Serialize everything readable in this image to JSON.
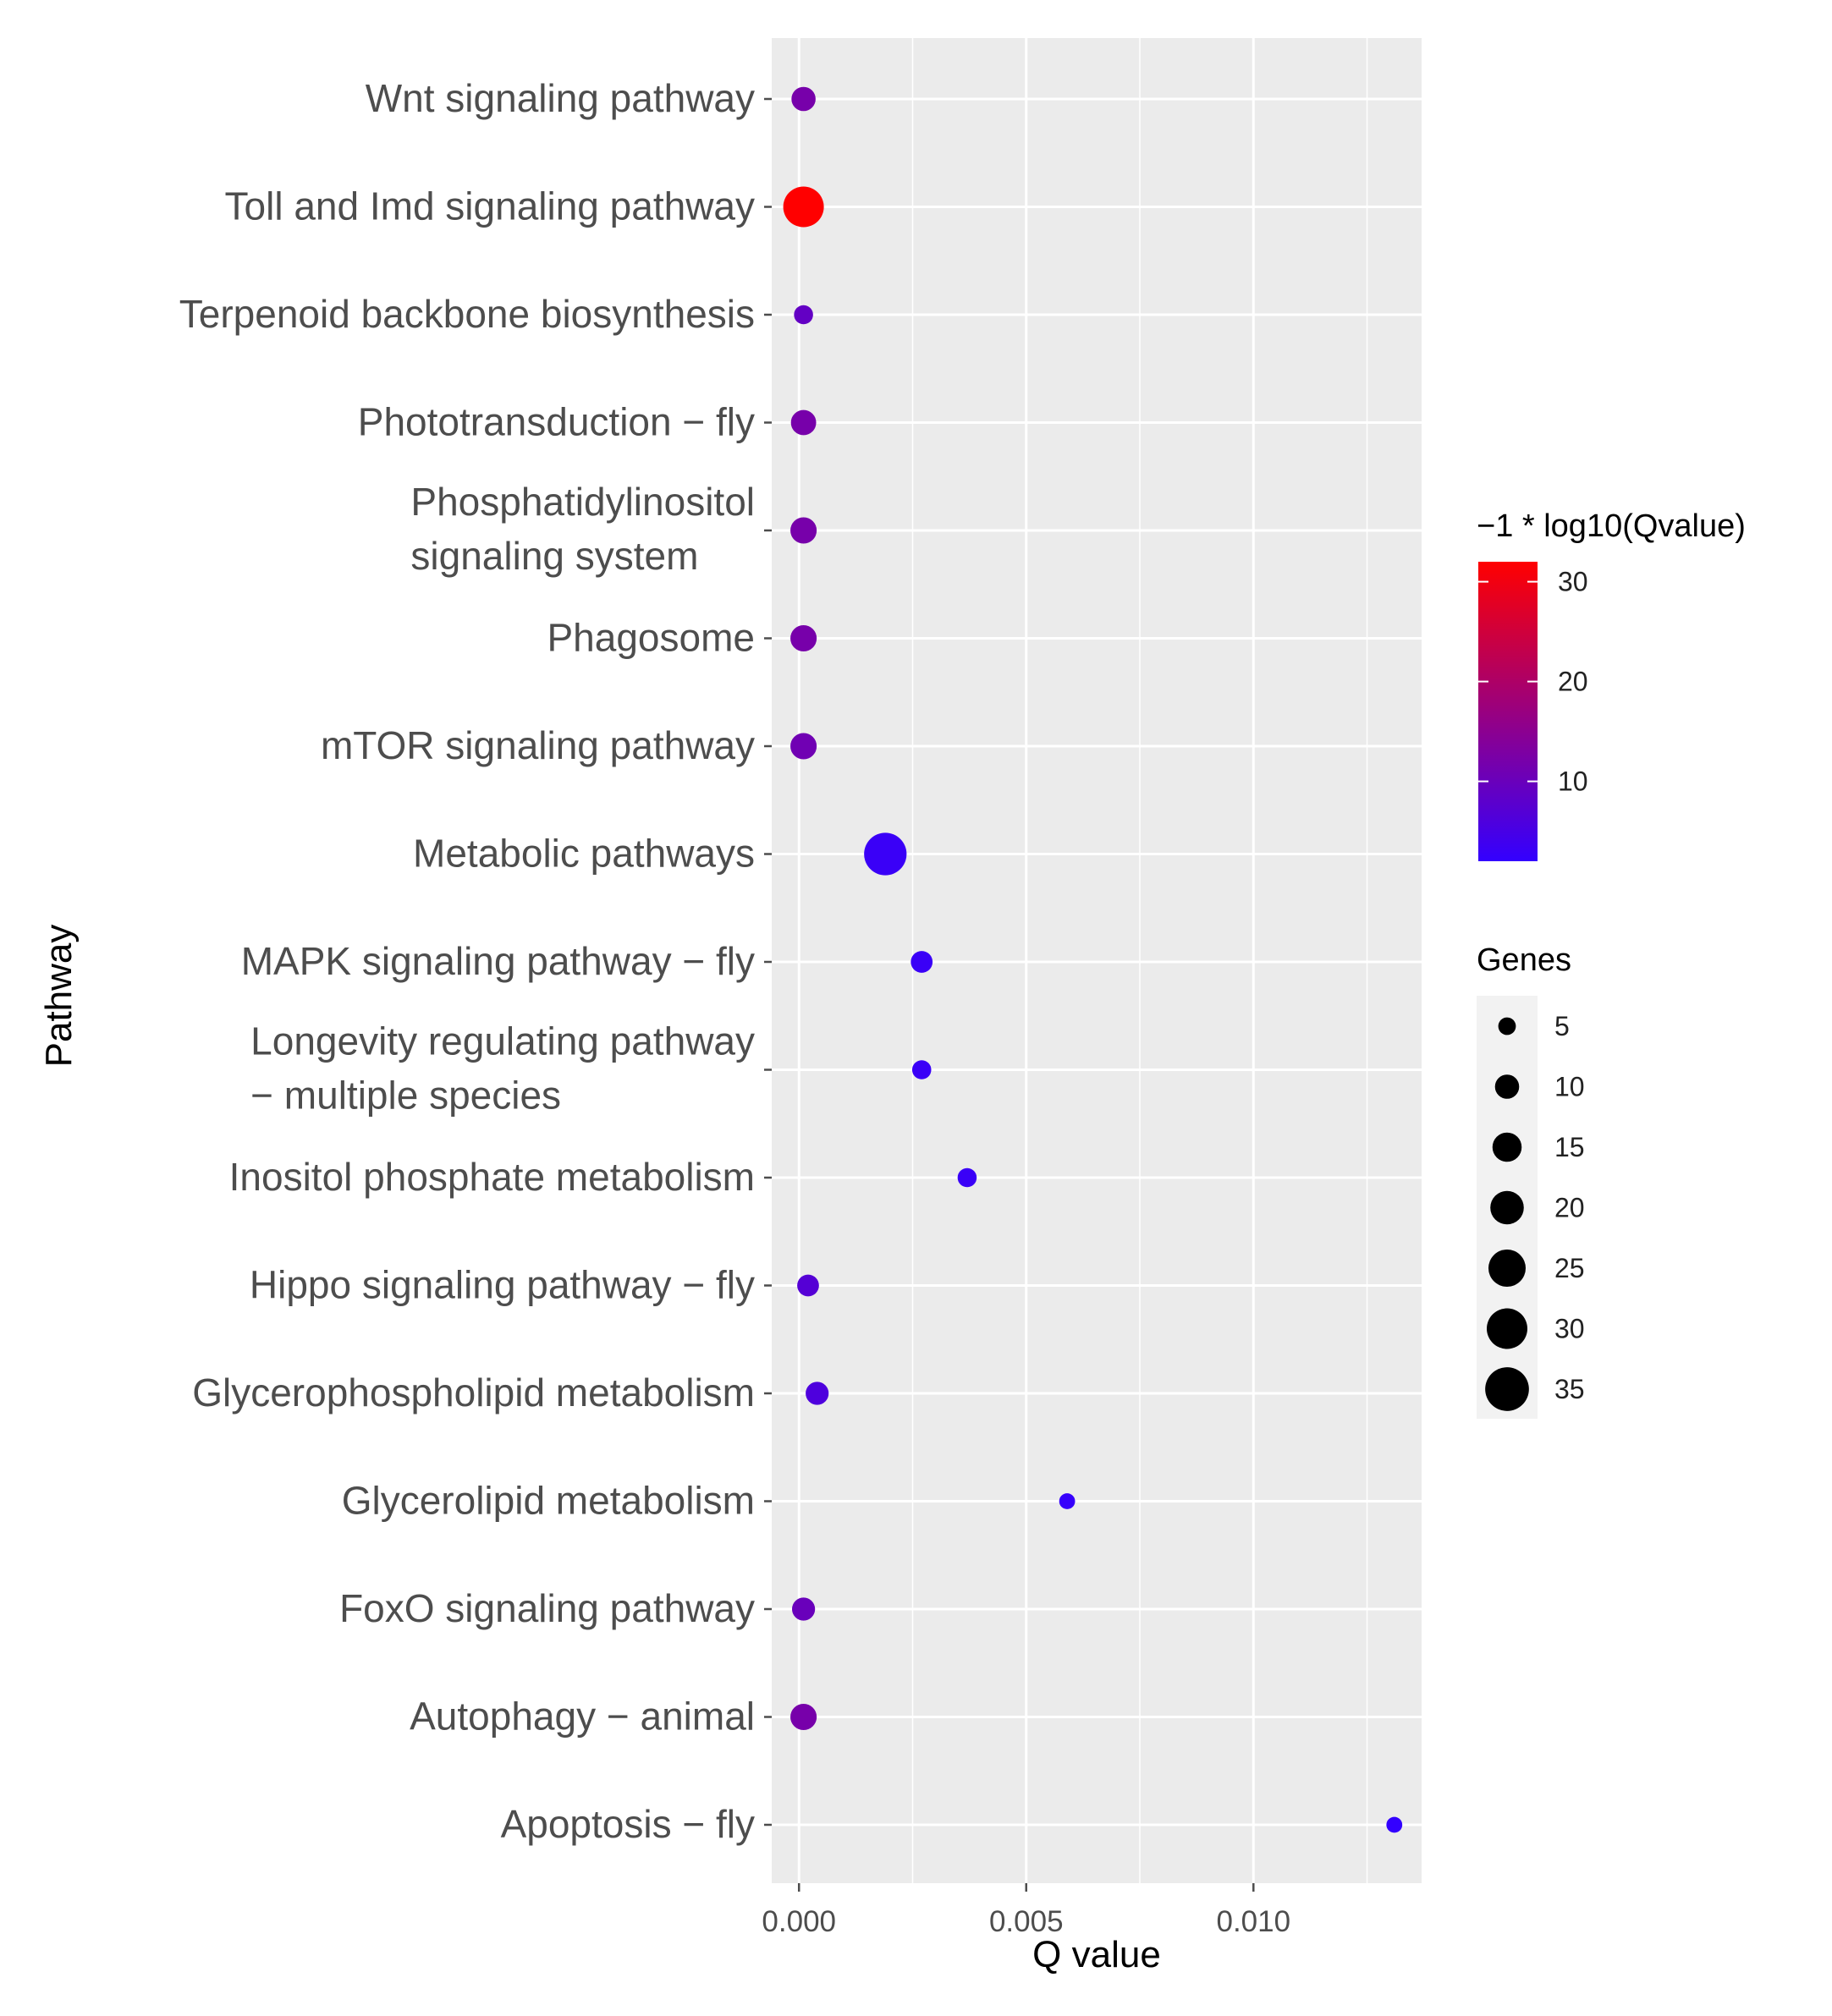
{
  "chart_data": {
    "type": "scatter",
    "subtype": "bubble",
    "xlabel": "Q value",
    "ylabel": "Pathway",
    "xlim": [
      -0.0006,
      0.0137
    ],
    "xticks": [
      0.0,
      0.005,
      0.01
    ],
    "xtick_labels": [
      "0.000",
      "0.005",
      "0.010"
    ],
    "grid": true,
    "points": [
      {
        "pathway": "Wnt signaling pathway",
        "label_lines": [
          "Wnt signaling pathway"
        ],
        "q": 0.0001,
        "genes": 10,
        "neglog10q": 12
      },
      {
        "pathway": "Toll and Imd signaling pathway",
        "label_lines": [
          "Toll and Imd signaling pathway"
        ],
        "q": 0.0001,
        "genes": 30,
        "neglog10q": 32
      },
      {
        "pathway": "Terpenoid backbone biosynthesis",
        "label_lines": [
          "Terpenoid backbone biosynthesis"
        ],
        "q": 0.0001,
        "genes": 6,
        "neglog10q": 9
      },
      {
        "pathway": "Phototransduction − fly",
        "label_lines": [
          "Phototransduction − fly"
        ],
        "q": 0.0001,
        "genes": 11,
        "neglog10q": 12
      },
      {
        "pathway": "Phosphatidylinositol signaling system",
        "label_lines": [
          "Phosphatidylinositol",
          "signaling system"
        ],
        "q": 0.0001,
        "genes": 12,
        "neglog10q": 12
      },
      {
        "pathway": "Phagosome",
        "label_lines": [
          "Phagosome"
        ],
        "q": 0.0001,
        "genes": 12,
        "neglog10q": 12
      },
      {
        "pathway": "mTOR signaling pathway",
        "label_lines": [
          "mTOR signaling pathway"
        ],
        "q": 0.0001,
        "genes": 12,
        "neglog10q": 11
      },
      {
        "pathway": "Metabolic pathways",
        "label_lines": [
          "Metabolic pathways"
        ],
        "q": 0.0019,
        "genes": 33,
        "neglog10q": 3
      },
      {
        "pathway": "MAPK signaling pathway − fly",
        "label_lines": [
          "MAPK signaling pathway − fly"
        ],
        "q": 0.0027,
        "genes": 8,
        "neglog10q": 3
      },
      {
        "pathway": "Longevity regulating pathway − multiple species",
        "label_lines": [
          "Longevity regulating pathway",
          "− multiple species"
        ],
        "q": 0.0027,
        "genes": 6,
        "neglog10q": 3
      },
      {
        "pathway": "Inositol phosphate metabolism",
        "label_lines": [
          "Inositol phosphate metabolism"
        ],
        "q": 0.0037,
        "genes": 6,
        "neglog10q": 3
      },
      {
        "pathway": "Hippo signaling pathway − fly",
        "label_lines": [
          "Hippo signaling pathway − fly"
        ],
        "q": 0.0002,
        "genes": 8,
        "neglog10q": 7
      },
      {
        "pathway": "Glycerophospholipid metabolism",
        "label_lines": [
          "Glycerophospholipid metabolism"
        ],
        "q": 0.0004,
        "genes": 9,
        "neglog10q": 6
      },
      {
        "pathway": "Glycerolipid metabolism",
        "label_lines": [
          "Glycerolipid metabolism"
        ],
        "q": 0.0059,
        "genes": 4,
        "neglog10q": 2.5
      },
      {
        "pathway": "FoxO signaling pathway",
        "label_lines": [
          "FoxO signaling pathway"
        ],
        "q": 0.0001,
        "genes": 9,
        "neglog10q": 10
      },
      {
        "pathway": "Autophagy − animal",
        "label_lines": [
          "Autophagy − animal"
        ],
        "q": 0.0001,
        "genes": 12,
        "neglog10q": 12
      },
      {
        "pathway": "Apoptosis − fly",
        "label_lines": [
          "Apoptosis − fly"
        ],
        "q": 0.0131,
        "genes": 4,
        "neglog10q": 2
      }
    ],
    "color_legend": {
      "title": "−1 * log10(Qvalue)",
      "range": [
        2,
        32
      ],
      "ticks": [
        10,
        20,
        30
      ],
      "tick_labels": [
        "10",
        "20",
        "30"
      ],
      "low_color": "#3300ff",
      "high_color": "#ff0000"
    },
    "size_legend": {
      "title": "Genes",
      "values": [
        5,
        10,
        15,
        20,
        25,
        30,
        35
      ],
      "labels": [
        "5",
        "10",
        "15",
        "20",
        "25",
        "30",
        "35"
      ]
    }
  },
  "colors": {
    "panel_bg": "#ebebeb",
    "grid_major": "#ffffff",
    "tick_color": "#4d4d4d"
  }
}
